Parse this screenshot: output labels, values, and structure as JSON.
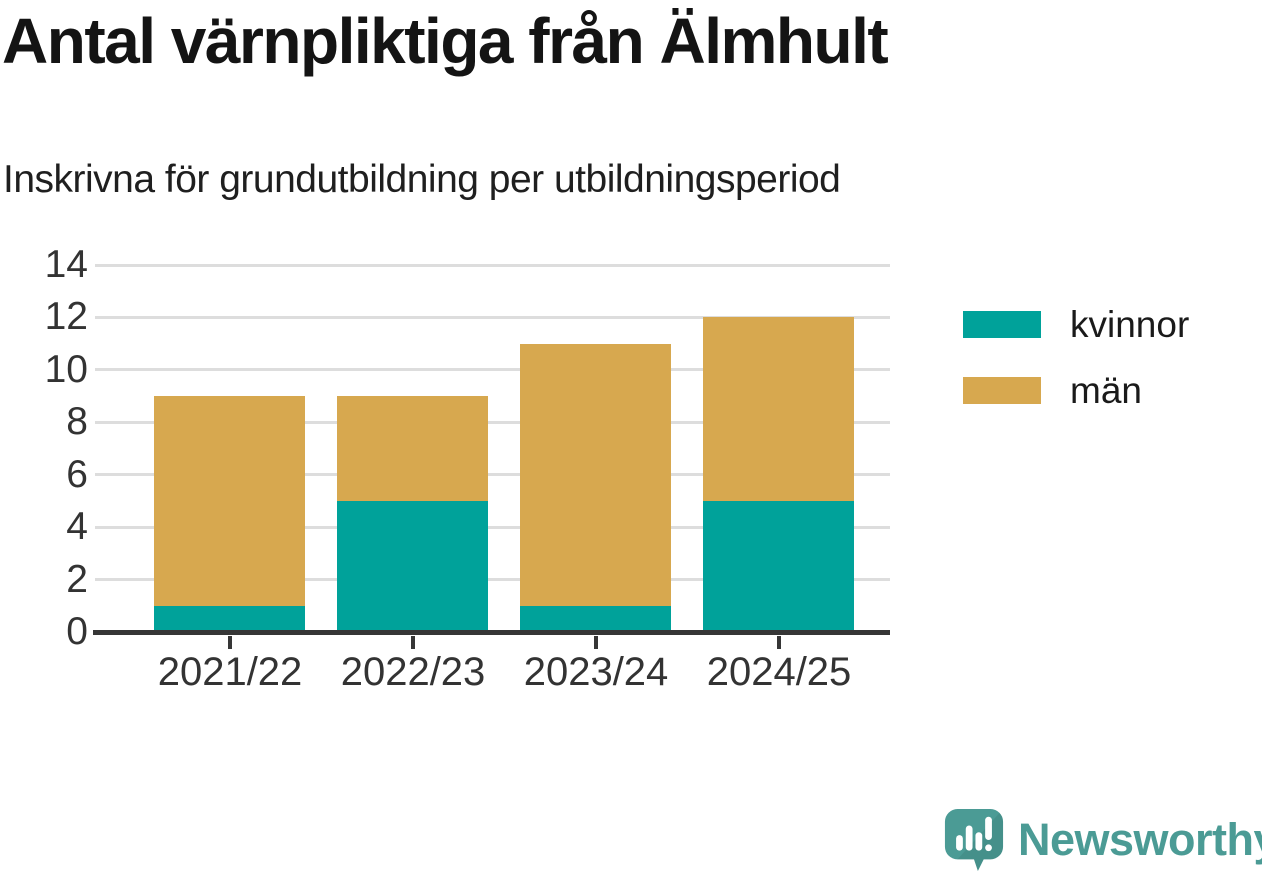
{
  "chart_data": {
    "type": "bar",
    "stacked": true,
    "title": "Antal värnpliktiga från Älmhult",
    "subtitle": "Inskrivna för grundutbildning per utbildningsperiod",
    "categories": [
      "2021/22",
      "2022/23",
      "2023/24",
      "2024/25"
    ],
    "series": [
      {
        "name": "kvinnor",
        "color": "#00A29A",
        "values": [
          1,
          5,
          1,
          5
        ]
      },
      {
        "name": "män",
        "color": "#D7A84F",
        "values": [
          8,
          4,
          10,
          7
        ]
      }
    ],
    "ylim": [
      0,
      14
    ],
    "yticks": [
      0,
      2,
      4,
      6,
      8,
      10,
      12,
      14
    ],
    "grid": "horizontal",
    "legend_position": "right",
    "colors": {
      "axis": "#363636",
      "gridline": "#DDDDDD",
      "tick_text": "#333333"
    }
  },
  "brand": {
    "name": "Newsworthy",
    "color": "#4B9B95"
  }
}
